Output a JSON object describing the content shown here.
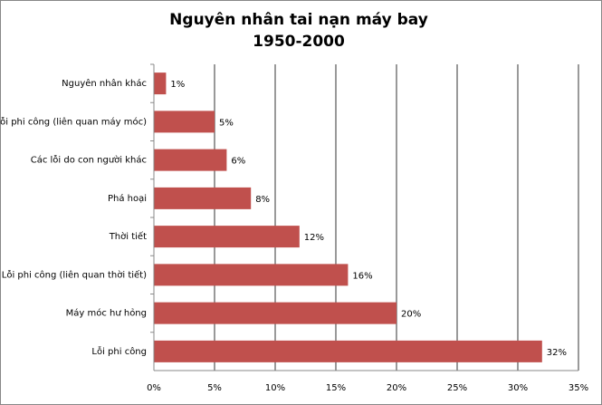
{
  "chart_data": {
    "type": "bar",
    "orientation": "horizontal",
    "title": "Nguyên nhân tai nạn máy bay",
    "subtitle": "1950-2000",
    "categories": [
      "Nguyên nhân khác",
      "Lỗi phi công (liên quan máy móc)",
      "Các lỗi do con người khác",
      "Phá hoại",
      "Thời tiết",
      "Lỗi phi công (liên quan thời tiết)",
      "Máy móc hư hỏng",
      "Lỗi phi công"
    ],
    "values": [
      1,
      5,
      6,
      8,
      12,
      16,
      20,
      32
    ],
    "value_labels": [
      "1%",
      "5%",
      "6%",
      "8%",
      "12%",
      "16%",
      "20%",
      "32%"
    ],
    "color": "#c0504d",
    "xlim": [
      0,
      35
    ],
    "xticks": [
      {
        "value": 0,
        "label": "0%"
      },
      {
        "value": 5,
        "label": "5%"
      },
      {
        "value": 10,
        "label": "10%"
      },
      {
        "value": 15,
        "label": "15%"
      },
      {
        "value": 20,
        "label": "20%"
      },
      {
        "value": 25,
        "label": "25%"
      },
      {
        "value": 30,
        "label": "30%"
      },
      {
        "value": 35,
        "label": "35%"
      }
    ],
    "grid": true
  }
}
